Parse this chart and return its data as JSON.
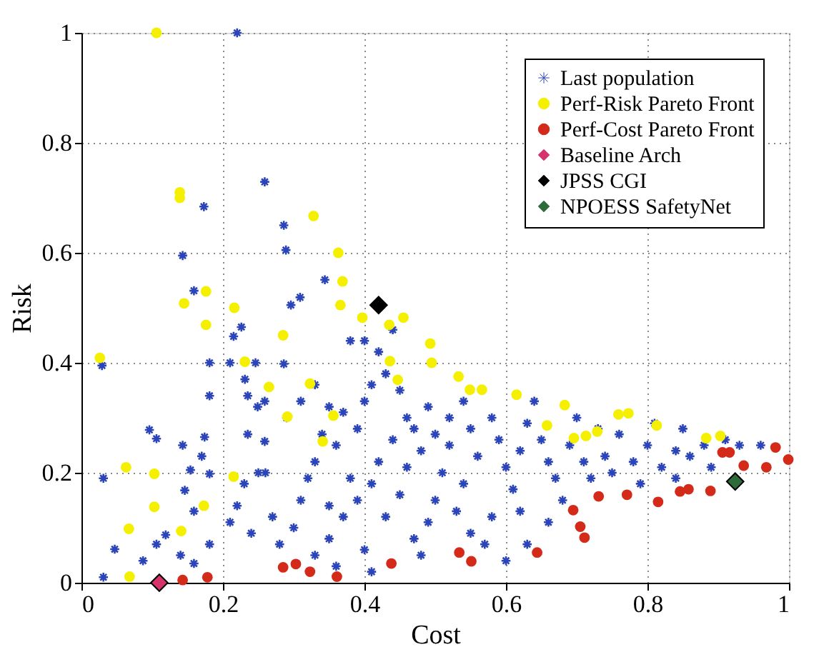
{
  "chart_data": {
    "type": "scatter",
    "xlabel": "Cost",
    "ylabel": "Risk",
    "xlim": [
      0,
      1
    ],
    "ylim": [
      0,
      1
    ],
    "xticks": [
      0,
      0.2,
      0.4,
      0.6,
      0.8,
      1
    ],
    "yticks": [
      0,
      0.2,
      0.4,
      0.6,
      0.8,
      1
    ],
    "grid": true,
    "legend": "top right",
    "series": [
      {
        "name": "Last population",
        "color": "#2b45b8",
        "marker": "cross",
        "x": [
          0.22,
          0.259,
          0.173,
          0.286,
          0.289,
          0.143,
          0.344,
          0.309,
          0.296,
          0.159,
          0.029,
          0.031,
          0.031,
          0.047,
          0.087,
          0.096,
          0.106,
          0.143,
          0.174,
          0.17,
          0.154,
          0.181,
          0.146,
          0.159,
          0.119,
          0.106,
          0.14,
          0.159,
          0.181,
          0.181,
          0.181,
          0.215,
          0.226,
          0.21,
          0.246,
          0.231,
          0.235,
          0.249,
          0.259,
          0.286,
          0.235,
          0.259,
          0.25,
          0.26,
          0.23,
          0.22,
          0.21,
          0.24,
          0.27,
          0.28,
          0.3,
          0.31,
          0.32,
          0.33,
          0.29,
          0.31,
          0.33,
          0.35,
          0.34,
          0.36,
          0.37,
          0.39,
          0.4,
          0.41,
          0.38,
          0.4,
          0.42,
          0.44,
          0.43,
          0.45,
          0.46,
          0.44,
          0.42,
          0.41,
          0.39,
          0.37,
          0.35,
          0.33,
          0.36,
          0.4,
          0.41,
          0.38,
          0.35,
          0.43,
          0.45,
          0.46,
          0.48,
          0.47,
          0.49,
          0.5,
          0.52,
          0.51,
          0.5,
          0.49,
          0.47,
          0.48,
          0.52,
          0.54,
          0.55,
          0.56,
          0.54,
          0.53,
          0.55,
          0.57,
          0.58,
          0.59,
          0.6,
          0.61,
          0.62,
          0.63,
          0.64,
          0.65,
          0.66,
          0.67,
          0.68,
          0.69,
          0.7,
          0.71,
          0.72,
          0.73,
          0.74,
          0.75,
          0.76,
          0.78,
          0.79,
          0.8,
          0.81,
          0.82,
          0.84,
          0.84,
          0.85,
          0.86,
          0.88,
          0.89,
          0.91,
          0.93,
          0.96,
          0.58,
          0.62,
          0.66,
          0.63,
          0.6
        ],
        "values": [
          1.0,
          0.729,
          0.684,
          0.65,
          0.605,
          0.595,
          0.551,
          0.519,
          0.505,
          0.531,
          0.395,
          0.19,
          0.01,
          0.061,
          0.04,
          0.278,
          0.262,
          0.25,
          0.265,
          0.23,
          0.205,
          0.198,
          0.168,
          0.13,
          0.087,
          0.07,
          0.05,
          0.035,
          0.07,
          0.4,
          0.34,
          0.448,
          0.465,
          0.4,
          0.4,
          0.37,
          0.34,
          0.32,
          0.33,
          0.398,
          0.27,
          0.257,
          0.2,
          0.2,
          0.18,
          0.14,
          0.11,
          0.09,
          0.12,
          0.07,
          0.1,
          0.15,
          0.19,
          0.22,
          0.3,
          0.33,
          0.36,
          0.32,
          0.27,
          0.25,
          0.31,
          0.28,
          0.33,
          0.36,
          0.44,
          0.44,
          0.42,
          0.46,
          0.38,
          0.35,
          0.3,
          0.26,
          0.22,
          0.18,
          0.15,
          0.12,
          0.08,
          0.05,
          0.03,
          0.06,
          0.02,
          0.19,
          0.14,
          0.12,
          0.16,
          0.21,
          0.24,
          0.28,
          0.32,
          0.27,
          0.25,
          0.2,
          0.15,
          0.11,
          0.08,
          0.05,
          0.3,
          0.33,
          0.28,
          0.23,
          0.18,
          0.13,
          0.09,
          0.07,
          0.3,
          0.26,
          0.21,
          0.17,
          0.24,
          0.29,
          0.33,
          0.26,
          0.22,
          0.19,
          0.15,
          0.25,
          0.3,
          0.22,
          0.19,
          0.28,
          0.23,
          0.2,
          0.27,
          0.22,
          0.18,
          0.25,
          0.29,
          0.21,
          0.24,
          0.19,
          0.28,
          0.23,
          0.25,
          0.21,
          0.26,
          0.25,
          0.25,
          0.12,
          0.13,
          0.11,
          0.07,
          0.04
        ]
      },
      {
        "name": "Perf-Risk Pareto Front",
        "color": "#f5f000",
        "marker": "circle",
        "x": [
          0.106,
          0.139,
          0.139,
          0.328,
          0.363,
          0.369,
          0.366,
          0.176,
          0.145,
          0.216,
          0.026,
          0.176,
          0.285,
          0.397,
          0.435,
          0.455,
          0.231,
          0.436,
          0.447,
          0.265,
          0.323,
          0.291,
          0.356,
          0.341,
          0.063,
          0.103,
          0.215,
          0.103,
          0.173,
          0.067,
          0.141,
          0.068,
          0.493,
          0.495,
          0.533,
          0.549,
          0.566,
          0.615,
          0.683,
          0.658,
          0.696,
          0.713,
          0.729,
          0.759,
          0.773,
          0.813,
          0.883,
          0.903
        ],
        "values": [
          1.0,
          0.7,
          0.71,
          0.667,
          0.6,
          0.548,
          0.505,
          0.53,
          0.508,
          0.5,
          0.409,
          0.469,
          0.45,
          0.482,
          0.469,
          0.482,
          0.402,
          0.403,
          0.369,
          0.356,
          0.362,
          0.302,
          0.304,
          0.257,
          0.21,
          0.198,
          0.193,
          0.138,
          0.14,
          0.098,
          0.094,
          0.011,
          0.435,
          0.4,
          0.375,
          0.351,
          0.351,
          0.342,
          0.323,
          0.286,
          0.263,
          0.267,
          0.275,
          0.306,
          0.308,
          0.286,
          0.263,
          0.267
        ]
      },
      {
        "name": "Perf-Cost Pareto Front",
        "color": "#d42a1a",
        "marker": "circle",
        "x": [
          0.143,
          0.178,
          0.285,
          0.303,
          0.323,
          0.361,
          0.438,
          0.534,
          0.551,
          0.644,
          0.695,
          0.705,
          0.711,
          0.731,
          0.771,
          0.815,
          0.846,
          0.858,
          0.889,
          0.906,
          0.916,
          0.936,
          0.968,
          0.981,
          0.999
        ],
        "values": [
          0.005,
          0.01,
          0.028,
          0.034,
          0.02,
          0.011,
          0.035,
          0.055,
          0.039,
          0.055,
          0.132,
          0.102,
          0.082,
          0.157,
          0.16,
          0.147,
          0.166,
          0.17,
          0.167,
          0.237,
          0.237,
          0.213,
          0.21,
          0.246,
          0.224
        ]
      },
      {
        "name": "Baseline Arch",
        "color": "#d6336c",
        "marker": "diamond",
        "x": [
          0.11
        ],
        "values": [
          0.0
        ]
      },
      {
        "name": "JPSS CGI",
        "color": "#000000",
        "marker": "diamond",
        "x": [
          0.42
        ],
        "values": [
          0.505
        ]
      },
      {
        "name": "NPOESS SafetyNet",
        "color": "#2e6b3a",
        "marker": "diamond",
        "x": [
          0.924
        ],
        "values": [
          0.184
        ]
      }
    ]
  }
}
